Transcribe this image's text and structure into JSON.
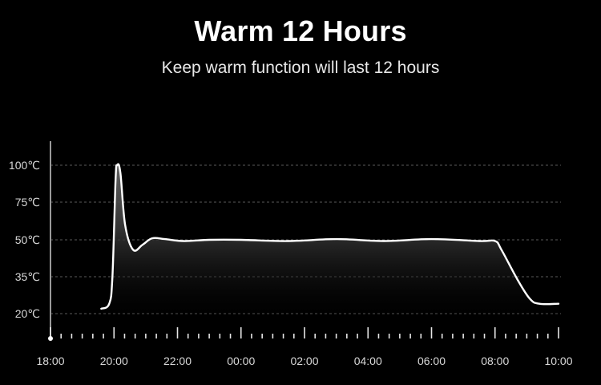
{
  "header": {
    "title": "Warm 12 Hours",
    "subtitle": "Keep warm function will last 12 hours"
  },
  "chart_data": {
    "type": "area",
    "title": "Warm 12 Hours",
    "subtitle": "Keep warm function will last 12 hours",
    "xlabel": "",
    "ylabel": "",
    "x_ticks": [
      "18:00",
      "20:00",
      "22:00",
      "00:00",
      "02:00",
      "04:00",
      "06:00",
      "08:00",
      "10:00"
    ],
    "y_ticks": [
      {
        "value": 20,
        "label": "20℃"
      },
      {
        "value": 35,
        "label": "35℃"
      },
      {
        "value": 50,
        "label": "50℃"
      },
      {
        "value": 75,
        "label": "75℃"
      },
      {
        "value": 100,
        "label": "100℃"
      }
    ],
    "grid": "horizontal dashed",
    "series": [
      {
        "values_hours_from_start_note": "x in hours after 18:00",
        "points": [
          {
            "x": 1.6,
            "y": 22
          },
          {
            "x": 1.85,
            "y": 24
          },
          {
            "x": 1.95,
            "y": 35
          },
          {
            "x": 2.05,
            "y": 90
          },
          {
            "x": 2.1,
            "y": 100
          },
          {
            "x": 2.2,
            "y": 95
          },
          {
            "x": 2.35,
            "y": 60
          },
          {
            "x": 2.6,
            "y": 46
          },
          {
            "x": 2.9,
            "y": 48
          },
          {
            "x": 3.2,
            "y": 51
          },
          {
            "x": 3.6,
            "y": 50.5
          },
          {
            "x": 4.2,
            "y": 49.5
          },
          {
            "x": 5.0,
            "y": 50
          },
          {
            "x": 6.0,
            "y": 50
          },
          {
            "x": 7.5,
            "y": 49.5
          },
          {
            "x": 9.0,
            "y": 50.5
          },
          {
            "x": 10.5,
            "y": 49.5
          },
          {
            "x": 12.0,
            "y": 50.5
          },
          {
            "x": 13.5,
            "y": 49.5
          },
          {
            "x": 14.0,
            "y": 49.5
          },
          {
            "x": 14.2,
            "y": 46
          },
          {
            "x": 14.7,
            "y": 34
          },
          {
            "x": 15.1,
            "y": 26
          },
          {
            "x": 15.4,
            "y": 24
          },
          {
            "x": 16.0,
            "y": 24
          }
        ]
      }
    ]
  },
  "colors": {
    "background": "#000000",
    "line": "#ffffff",
    "grid": "#5a5a5a",
    "text": "#d8d8d8"
  }
}
